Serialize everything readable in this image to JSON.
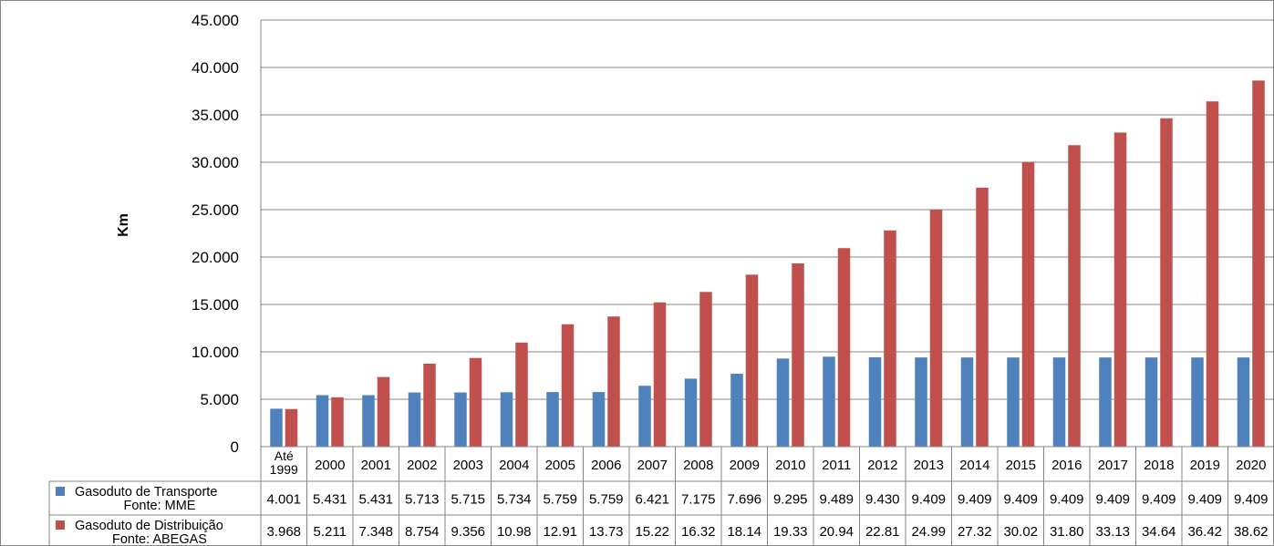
{
  "chart_data": {
    "type": "bar",
    "title": "",
    "xlabel": "",
    "ylabel": "Km",
    "ylim": [
      0,
      45000
    ],
    "y_ticks": [
      "0",
      "5.000",
      "10.000",
      "15.000",
      "20.000",
      "25.000",
      "30.000",
      "35.000",
      "40.000",
      "45.000"
    ],
    "grid": true,
    "legend": "data-table-left",
    "categories": [
      [
        "Até",
        "1999"
      ],
      [
        "2000"
      ],
      [
        "2001"
      ],
      [
        "2002"
      ],
      [
        "2003"
      ],
      [
        "2004"
      ],
      [
        "2005"
      ],
      [
        "2006"
      ],
      [
        "2007"
      ],
      [
        "2008"
      ],
      [
        "2009"
      ],
      [
        "2010"
      ],
      [
        "2011"
      ],
      [
        "2012"
      ],
      [
        "2013"
      ],
      [
        "2014"
      ],
      [
        "2015"
      ],
      [
        "2016"
      ],
      [
        "2017"
      ],
      [
        "2018"
      ],
      [
        "2019"
      ],
      [
        "2020"
      ]
    ],
    "series": [
      {
        "name": "Gasoduto de Transporte",
        "source": "Fonte: MME",
        "color": "#4f81bd",
        "values": [
          4001,
          5431,
          5431,
          5713,
          5715,
          5734,
          5759,
          5759,
          6421,
          7175,
          7696,
          9295,
          9489,
          9430,
          9409,
          9409,
          9409,
          9409,
          9409,
          9409,
          9409,
          9409
        ],
        "labels": [
          "4.001",
          "5.431",
          "5.431",
          "5.713",
          "5.715",
          "5.734",
          "5.759",
          "5.759",
          "6.421",
          "7.175",
          "7.696",
          "9.295",
          "9.489",
          "9.430",
          "9.409",
          "9.409",
          "9.409",
          "9.409",
          "9.409",
          "9.409",
          "9.409",
          "9.409"
        ]
      },
      {
        "name": "Gasoduto de Distribuição",
        "source": "Fonte: ABEGAS",
        "color": "#c0504d",
        "values": [
          3968,
          5211,
          7348,
          8754,
          9356,
          10980,
          12910,
          13730,
          15220,
          16320,
          18140,
          19330,
          20940,
          22810,
          24990,
          27320,
          30020,
          31800,
          33130,
          34640,
          36420,
          38620
        ],
        "labels": [
          "3.968",
          "5.211",
          "7.348",
          "8.754",
          "9.356",
          "10.98",
          "12.91",
          "13.73",
          "15.22",
          "16.32",
          "18.14",
          "19.33",
          "20.94",
          "22.81",
          "24.99",
          "27.32",
          "30.02",
          "31.80",
          "33.13",
          "34.64",
          "36.42",
          "38.62"
        ]
      }
    ]
  }
}
